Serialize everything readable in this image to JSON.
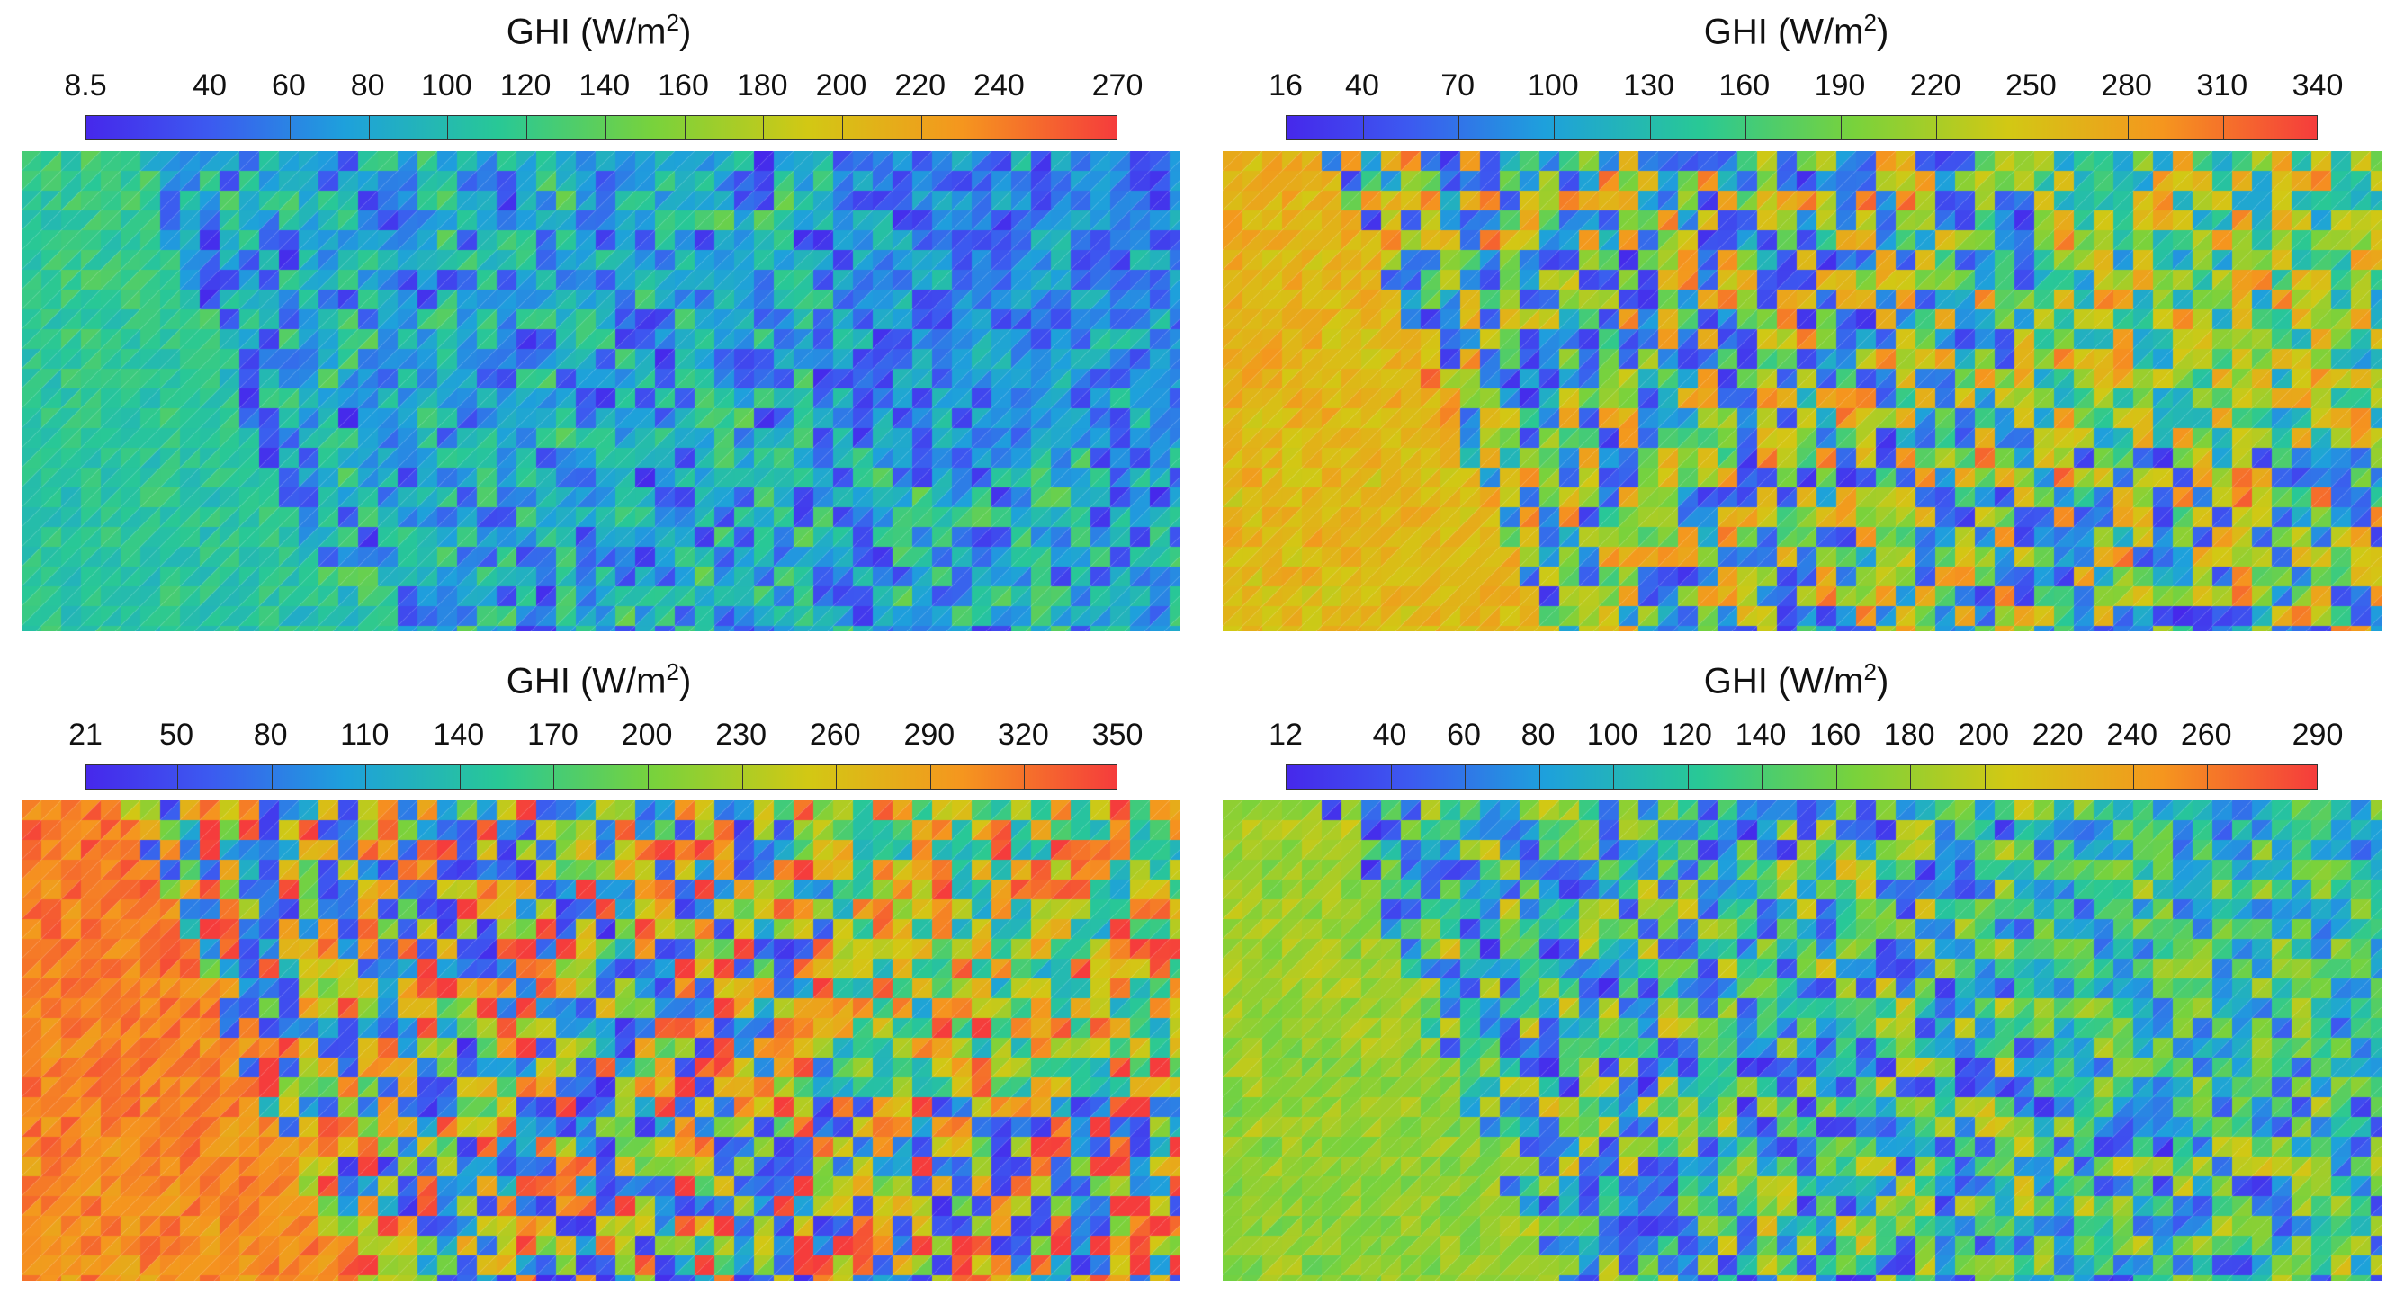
{
  "panels": [
    {
      "title": "GHI (W/m",
      "title_sup": "2",
      "title_end": ")",
      "ticks": [
        "8.5",
        "40",
        "60",
        "80",
        "100",
        "120",
        "140",
        "160",
        "180",
        "200",
        "220",
        "240",
        "270"
      ],
      "scale": {
        "min": 8.5,
        "max": 270
      },
      "ground_level": 0.42
    },
    {
      "title": "GHI (W/m",
      "title_sup": "2",
      "title_end": ")",
      "ticks": [
        "16",
        "40",
        "70",
        "100",
        "130",
        "160",
        "190",
        "220",
        "250",
        "280",
        "310",
        "340"
      ],
      "scale": {
        "min": 16,
        "max": 340
      },
      "ground_level": 0.78
    },
    {
      "title": "GHI (W/m",
      "title_sup": "2",
      "title_end": ")",
      "ticks": [
        "21",
        "50",
        "80",
        "110",
        "140",
        "170",
        "200",
        "230",
        "260",
        "290",
        "320",
        "350"
      ],
      "scale": {
        "min": 21,
        "max": 350
      },
      "ground_level": 0.9
    },
    {
      "title": "GHI (W/m",
      "title_sup": "2",
      "title_end": ")",
      "ticks": [
        "12",
        "40",
        "60",
        "80",
        "100",
        "120",
        "140",
        "160",
        "180",
        "200",
        "220",
        "240",
        "260",
        "290"
      ],
      "scale": {
        "min": 12,
        "max": 290
      },
      "ground_level": 0.62
    }
  ]
}
